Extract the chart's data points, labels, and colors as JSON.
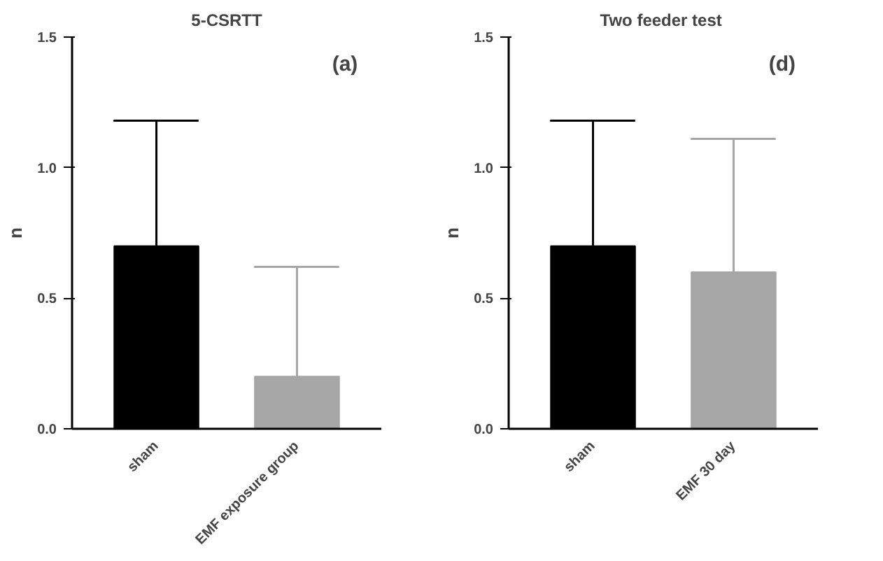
{
  "chart_data": [
    {
      "type": "bar",
      "title": "5-CSRTT",
      "ylabel": "n",
      "annotations": [
        "(a)"
      ],
      "categories": [
        "sham",
        "EMF exposure group"
      ],
      "values": [
        0.7,
        0.2
      ],
      "colors": [
        "#000000",
        "#a6a6a6"
      ],
      "errors": [
        [
          0.7,
          1.18
        ],
        [
          0.2,
          0.62
        ]
      ],
      "ylim": [
        0,
        1.5
      ],
      "yticks": [
        {
          "value": 0,
          "label": "0.0"
        },
        {
          "value": 0.5,
          "label": "0.5"
        },
        {
          "value": 1,
          "label": "1.0"
        },
        {
          "value": 1.5,
          "label": "1.5"
        }
      ],
      "grid": false
    },
    {
      "type": "bar",
      "title": "Two feeder  test",
      "ylabel": "n",
      "annotations": [
        "(d)"
      ],
      "categories": [
        "sham",
        "EMF 30 day"
      ],
      "values": [
        0.7,
        0.6
      ],
      "colors": [
        "#000000",
        "#a6a6a6"
      ],
      "errors": [
        [
          0.7,
          1.18
        ],
        [
          0.6,
          1.11
        ]
      ],
      "ylim": [
        0,
        1.5
      ],
      "yticks": [
        {
          "value": 0,
          "label": "0.0"
        },
        {
          "value": 0.5,
          "label": "0.5"
        },
        {
          "value": 1,
          "label": "1.0"
        },
        {
          "value": 1.5,
          "label": "1.5"
        }
      ],
      "grid": false
    }
  ]
}
